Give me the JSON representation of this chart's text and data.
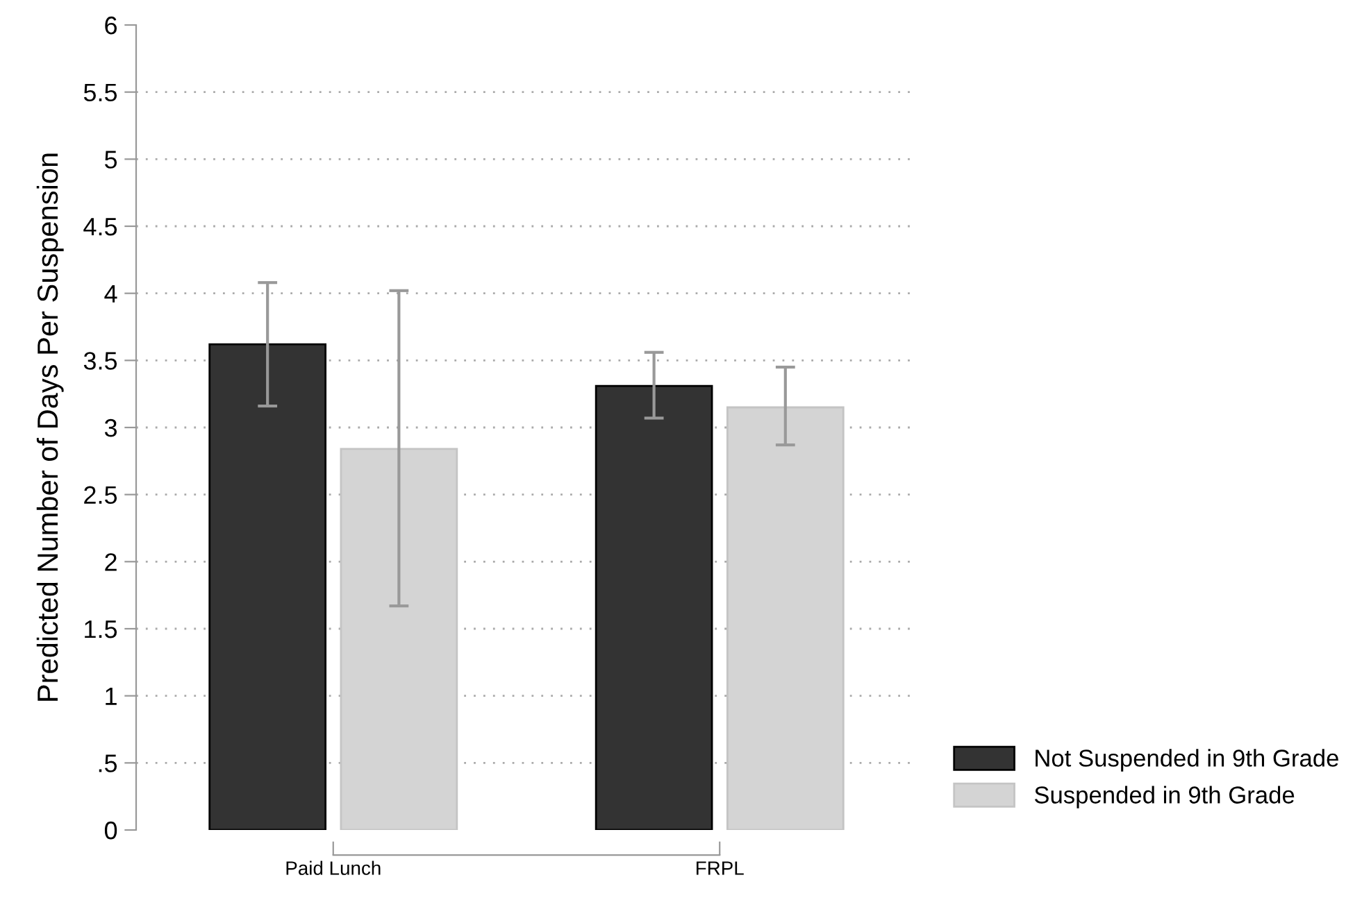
{
  "chart_data": {
    "type": "bar",
    "ylabel": "Predicted Number of Days Per Suspension",
    "categories": [
      "Paid Lunch",
      "FRPL"
    ],
    "series": [
      {
        "name": "Not Suspended in 9th Grade",
        "color": "#333333",
        "values": [
          3.62,
          3.31
        ],
        "errors": [
          [
            3.16,
            4.08
          ],
          [
            3.07,
            3.56
          ]
        ]
      },
      {
        "name": "Suspended in 9th Grade",
        "color": "#d4d4d4",
        "values": [
          2.84,
          3.15
        ],
        "errors": [
          [
            1.67,
            4.02
          ],
          [
            2.87,
            3.45
          ]
        ]
      }
    ],
    "ylim": [
      0,
      6
    ],
    "yticks": [
      0,
      {
        "value": 0.5,
        "label": ".5"
      },
      1,
      1.5,
      2,
      2.5,
      3,
      3.5,
      4,
      4.5,
      5,
      5.5,
      6
    ],
    "grid": "y",
    "legend": "bottom right"
  }
}
